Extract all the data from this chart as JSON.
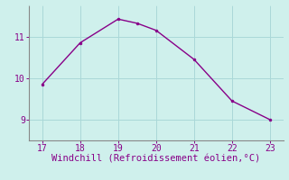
{
  "x": [
    17,
    18,
    19,
    19.5,
    20,
    21,
    22,
    23
  ],
  "y": [
    9.85,
    10.85,
    11.42,
    11.32,
    11.15,
    10.45,
    9.45,
    9.0
  ],
  "line_color": "#880088",
  "marker_color": "#880088",
  "background_color": "#cff0ec",
  "grid_color": "#aad8d8",
  "tick_color": "#880088",
  "xlabel": "Windchill (Refroidissement éolien,°C)",
  "xlabel_color": "#880088",
  "xlim": [
    16.65,
    23.35
  ],
  "ylim": [
    8.5,
    11.75
  ],
  "xticks": [
    17,
    18,
    19,
    20,
    21,
    22,
    23
  ],
  "yticks": [
    9,
    10,
    11
  ],
  "spine_color_bottom": "#888888",
  "spine_color_left": "#888888",
  "spine_color_top": "#cff0ec",
  "spine_color_right": "#cff0ec",
  "marker_size": 4,
  "line_width": 1.0,
  "tick_fontsize": 7,
  "xlabel_fontsize": 7.5
}
